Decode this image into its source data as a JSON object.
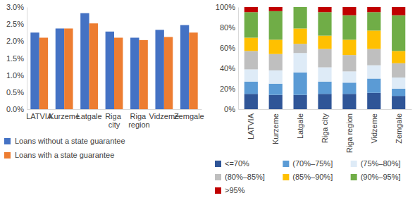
{
  "chart_data": [
    {
      "type": "bar",
      "categories": [
        "LATVIA",
        "Kurzeme",
        "Latgale",
        "Riga city",
        "Riga region",
        "Vidzeme",
        "Zemgale"
      ],
      "series": [
        {
          "name": "Loans without a state guarantee",
          "color": "#4472c4",
          "values": [
            2.25,
            2.37,
            2.82,
            2.28,
            2.1,
            2.33,
            2.47
          ]
        },
        {
          "name": "Loans with a state guarantee",
          "color": "#ed7d31",
          "values": [
            2.1,
            2.37,
            2.52,
            2.1,
            2.03,
            2.12,
            2.25
          ]
        }
      ],
      "ylim": [
        0,
        3
      ],
      "yticks": [
        {
          "value": 0,
          "label": "0.0%"
        },
        {
          "value": 0.5,
          "label": "0.5%"
        },
        {
          "value": 1,
          "label": "1.0%"
        },
        {
          "value": 1.5,
          "label": "1.5%"
        },
        {
          "value": 2,
          "label": "2.0%"
        },
        {
          "value": 2.5,
          "label": "2.5%"
        },
        {
          "value": 3,
          "label": "3.0%"
        }
      ],
      "grid": false,
      "legend": "bottom"
    },
    {
      "type": "bar",
      "stacked": true,
      "categories": [
        "LATVIA",
        "Kurzeme",
        "Latgale",
        "Riga city",
        "Riga region",
        "Vidzeme",
        "Zemgale"
      ],
      "series": [
        {
          "name": "<=70%",
          "color": "#2f5597",
          "values": [
            15,
            14,
            14,
            15,
            15,
            16,
            13
          ]
        },
        {
          "name": "(70%–75%]",
          "color": "#5b9bd5",
          "values": [
            12,
            11,
            22,
            12,
            11,
            14,
            7
          ]
        },
        {
          "name": "(75%–80%]",
          "color": "#deebf7",
          "values": [
            12,
            13,
            19,
            14,
            11,
            13,
            11
          ]
        },
        {
          "name": "(80%–85%]",
          "color": "#bfbfbf",
          "values": [
            18,
            16,
            9,
            18,
            16,
            16,
            14
          ]
        },
        {
          "name": "(85%–90%]",
          "color": "#ffc000",
          "values": [
            13,
            14,
            15,
            13,
            15,
            18,
            12
          ]
        },
        {
          "name": "(90%–95%]",
          "color": "#70ad47",
          "values": [
            25,
            28,
            21,
            23,
            24,
            18,
            35
          ]
        },
        {
          "name": ">95%",
          "color": "#c00000",
          "values": [
            5,
            4,
            0,
            5,
            8,
            5,
            8
          ]
        }
      ],
      "ylim": [
        0,
        100
      ],
      "yticks": [
        {
          "value": 0,
          "label": "0%"
        },
        {
          "value": 20,
          "label": "20%"
        },
        {
          "value": 40,
          "label": "40%"
        },
        {
          "value": 60,
          "label": "60%"
        },
        {
          "value": 80,
          "label": "80%"
        },
        {
          "value": 100,
          "label": "100%"
        }
      ],
      "grid": false,
      "legend": "bottom"
    }
  ]
}
